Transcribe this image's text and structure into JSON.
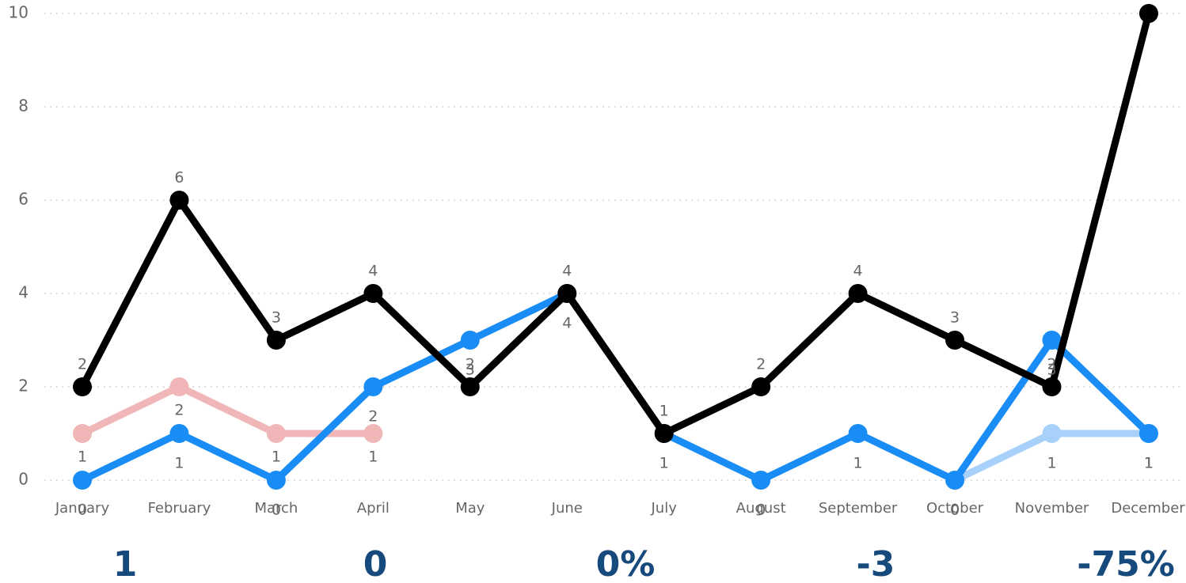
{
  "chart_data": {
    "type": "line",
    "categories": [
      "January",
      "February",
      "March",
      "April",
      "May",
      "June",
      "July",
      "August",
      "September",
      "October",
      "November",
      "December"
    ],
    "series": [
      {
        "color": "#a7d1fb",
        "values": [
          null,
          null,
          null,
          null,
          null,
          null,
          null,
          null,
          null,
          0,
          1,
          1
        ]
      },
      {
        "color": "#f0b6b8",
        "values": [
          1,
          2,
          1,
          1,
          null,
          null,
          null,
          null,
          null,
          null,
          null,
          null
        ]
      },
      {
        "color": "#198df5",
        "values": [
          0,
          1,
          0,
          2,
          3,
          4,
          1,
          0,
          1,
          0,
          3,
          1
        ]
      },
      {
        "color": "#000000",
        "values": [
          2,
          6,
          3,
          4,
          2,
          4,
          1,
          2,
          4,
          3,
          2,
          10
        ]
      }
    ],
    "ylim": [
      0,
      10
    ],
    "yticks": [
      0,
      2,
      4,
      6,
      8,
      10
    ],
    "grid": true
  },
  "kpis": [
    "1",
    "0",
    "0%",
    "-3",
    "-75%"
  ]
}
